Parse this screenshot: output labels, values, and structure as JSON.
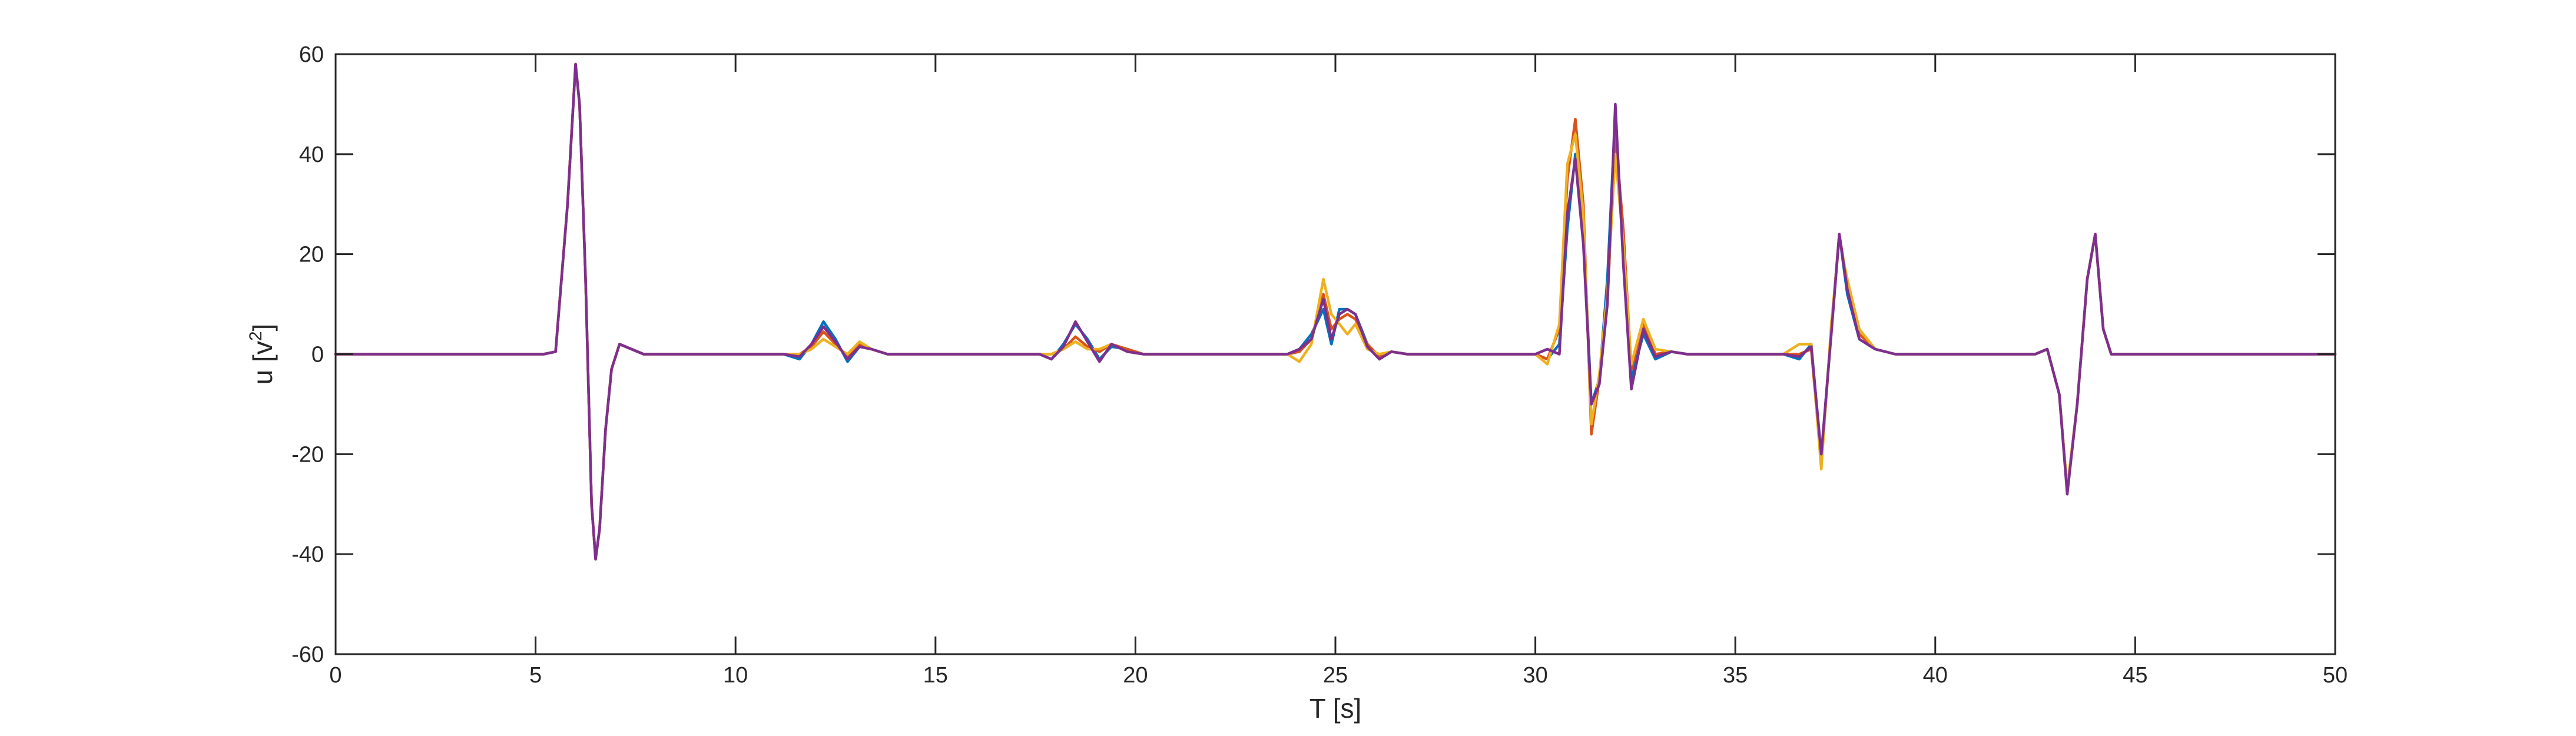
{
  "chart_data": {
    "type": "line",
    "title": "",
    "xlabel": "T [s]",
    "ylabel": "u [v",
    "ylabel_sup": "2",
    "ylabel_end": "]",
    "xlim": [
      0,
      50
    ],
    "ylim": [
      -60,
      60
    ],
    "xticks": [
      0,
      5,
      10,
      15,
      20,
      25,
      30,
      35,
      40,
      45,
      50
    ],
    "yticks": [
      -60,
      -40,
      -20,
      0,
      20,
      40,
      60
    ],
    "grid": false,
    "legend": "none",
    "colors": {
      "blue": "#0072BD",
      "orange": "#D95319",
      "yellow": "#EDB120",
      "purple": "#7E2F8E",
      "axis": "#262626"
    },
    "series": [
      {
        "color": "#0072BD",
        "x": [
          0,
          5.2,
          5.5,
          5.8,
          6.0,
          6.1,
          6.25,
          6.4,
          6.5,
          6.6,
          6.75,
          6.9,
          7.1,
          7.4,
          7.7,
          8.0,
          11.2,
          11.6,
          11.9,
          12.2,
          12.5,
          12.8,
          13.1,
          13.4,
          13.8,
          17.6,
          17.9,
          18.2,
          18.5,
          18.8,
          19.1,
          19.4,
          19.8,
          20.2,
          23.8,
          24.1,
          24.4,
          24.7,
          24.9,
          25.1,
          25.3,
          25.5,
          25.8,
          26.1,
          26.4,
          26.8,
          30.0,
          30.3,
          30.6,
          30.8,
          31.0,
          31.2,
          31.4,
          31.6,
          31.8,
          32.0,
          32.2,
          32.4,
          32.7,
          33.0,
          33.4,
          33.8,
          36.2,
          36.6,
          36.9,
          37.15,
          37.4,
          37.6,
          37.8,
          38.1,
          38.5,
          39.0,
          39.5,
          42.5,
          42.8,
          43.1,
          43.3,
          43.55,
          43.8,
          44.0,
          44.2,
          44.4,
          50
        ],
        "y": [
          0,
          0,
          0.5,
          30,
          58,
          50,
          15,
          -30,
          -41,
          -35,
          -15,
          -3,
          2,
          1,
          0,
          0,
          0,
          -1,
          2,
          6.5,
          3,
          -1.5,
          1.5,
          1,
          0,
          0,
          -1,
          2,
          6,
          3,
          -1,
          1.5,
          1,
          0,
          0,
          1,
          4,
          9,
          2,
          9,
          9,
          8,
          2,
          -1,
          0.5,
          0,
          0,
          -1,
          2,
          25,
          40,
          25,
          -10,
          -5,
          15,
          48,
          20,
          -5,
          4,
          -1,
          0.5,
          0,
          0,
          -1,
          2,
          -21,
          5,
          24,
          12,
          3,
          1,
          0,
          0,
          0,
          1,
          -8,
          -27,
          -10,
          15,
          24,
          5,
          0,
          0
        ]
      },
      {
        "color": "#D95319",
        "x": [
          0,
          5.2,
          5.5,
          5.8,
          6.0,
          6.1,
          6.25,
          6.4,
          6.5,
          6.6,
          6.75,
          6.9,
          7.1,
          7.4,
          7.7,
          8.0,
          11.2,
          11.6,
          11.9,
          12.2,
          12.5,
          12.8,
          13.1,
          13.4,
          13.8,
          17.6,
          17.9,
          18.2,
          18.5,
          18.8,
          19.1,
          19.4,
          19.8,
          20.2,
          23.8,
          24.1,
          24.4,
          24.7,
          24.9,
          25.1,
          25.3,
          25.5,
          25.8,
          26.1,
          26.4,
          26.8,
          30.0,
          30.3,
          30.6,
          30.8,
          31.0,
          31.2,
          31.4,
          31.6,
          31.8,
          32.0,
          32.2,
          32.4,
          32.7,
          33.0,
          33.4,
          33.8,
          36.2,
          36.6,
          36.9,
          37.15,
          37.4,
          37.6,
          37.8,
          38.1,
          38.5,
          39.0,
          39.5,
          42.5,
          42.8,
          43.1,
          43.3,
          43.55,
          43.8,
          44.0,
          44.2,
          44.4,
          50
        ],
        "y": [
          0,
          0,
          0.5,
          30,
          58,
          50,
          15,
          -30,
          -41,
          -35,
          -15,
          -3,
          2,
          1,
          0,
          0,
          0,
          0,
          1.5,
          4.5,
          2,
          -0.5,
          2,
          1,
          0,
          0,
          0,
          1,
          3.5,
          1.5,
          0.5,
          2,
          1,
          0,
          0,
          0.5,
          3,
          12,
          5,
          7,
          8,
          7,
          2,
          -0.5,
          0.5,
          0,
          0,
          -1,
          5,
          35,
          47,
          30,
          -16,
          -5,
          10,
          44,
          25,
          -3,
          6,
          0,
          0.5,
          0,
          0,
          0,
          1,
          -22,
          5,
          24,
          14,
          4,
          1,
          0,
          0,
          0,
          1,
          -8,
          -27,
          -10,
          15,
          24,
          5,
          0,
          0
        ]
      },
      {
        "color": "#EDB120",
        "x": [
          0,
          5.2,
          5.5,
          5.8,
          6.0,
          6.1,
          6.25,
          6.4,
          6.5,
          6.6,
          6.75,
          6.9,
          7.1,
          7.4,
          7.7,
          8.0,
          11.2,
          11.6,
          11.9,
          12.2,
          12.5,
          12.8,
          13.1,
          13.4,
          13.8,
          17.6,
          17.9,
          18.2,
          18.5,
          18.8,
          19.1,
          19.4,
          19.8,
          20.2,
          23.8,
          24.1,
          24.4,
          24.7,
          24.9,
          25.1,
          25.3,
          25.5,
          25.8,
          26.1,
          26.4,
          26.8,
          30.0,
          30.3,
          30.6,
          30.8,
          31.0,
          31.2,
          31.4,
          31.6,
          31.8,
          32.0,
          32.2,
          32.4,
          32.7,
          33.0,
          33.4,
          33.8,
          36.2,
          36.6,
          36.9,
          37.15,
          37.4,
          37.6,
          37.8,
          38.1,
          38.5,
          39.0,
          39.5,
          42.5,
          42.8,
          43.1,
          43.3,
          43.55,
          43.8,
          44.0,
          44.2,
          44.4,
          50
        ],
        "y": [
          0,
          0,
          0.5,
          30,
          58,
          50,
          15,
          -30,
          -41,
          -35,
          -15,
          -3,
          2,
          1,
          0,
          0,
          0,
          0,
          1,
          3,
          1.5,
          0,
          2.5,
          1,
          0,
          0,
          0,
          1,
          2.5,
          1,
          1,
          2,
          0.5,
          0,
          0,
          -1.5,
          2,
          15,
          8,
          6,
          4,
          6,
          1,
          0,
          0.5,
          0,
          0,
          -2,
          6,
          38,
          44,
          28,
          -14,
          -4,
          12,
          40,
          22,
          -2,
          7,
          1,
          0.5,
          0,
          0,
          2,
          2,
          -23,
          6,
          23,
          15,
          5,
          1,
          0,
          0,
          0,
          1,
          -8,
          -27,
          -10,
          15,
          24,
          5,
          0,
          0
        ]
      },
      {
        "color": "#7E2F8E",
        "x": [
          0,
          5.2,
          5.5,
          5.8,
          6.0,
          6.1,
          6.25,
          6.4,
          6.5,
          6.6,
          6.75,
          6.9,
          7.1,
          7.4,
          7.7,
          8.0,
          11.2,
          11.6,
          11.9,
          12.2,
          12.5,
          12.8,
          13.1,
          13.4,
          13.8,
          17.6,
          17.9,
          18.2,
          18.5,
          18.8,
          19.1,
          19.4,
          19.8,
          20.2,
          23.8,
          24.1,
          24.4,
          24.7,
          24.9,
          25.1,
          25.3,
          25.5,
          25.8,
          26.1,
          26.4,
          26.8,
          30.0,
          30.3,
          30.6,
          30.8,
          31.0,
          31.2,
          31.4,
          31.6,
          31.8,
          32.0,
          32.2,
          32.4,
          32.7,
          33.0,
          33.4,
          33.8,
          36.2,
          36.6,
          36.9,
          37.15,
          37.4,
          37.6,
          37.8,
          38.1,
          38.5,
          39.0,
          39.5,
          42.5,
          42.8,
          43.1,
          43.3,
          43.55,
          43.8,
          44.0,
          44.2,
          44.4,
          50
        ],
        "y": [
          0,
          0,
          0.5,
          30,
          58,
          50,
          15,
          -30,
          -41,
          -35,
          -15,
          -3,
          2,
          1,
          0,
          0,
          0,
          -0.5,
          2,
          5.5,
          2.5,
          -1,
          1.5,
          1,
          0,
          0,
          -1,
          1.5,
          6.5,
          2.5,
          -1.5,
          2,
          0.5,
          0,
          0,
          1,
          3,
          11,
          3,
          8,
          9,
          8,
          1.5,
          -1,
          0.5,
          0,
          0,
          1,
          0,
          28,
          39,
          22,
          -10,
          -6,
          10,
          50,
          18,
          -7,
          5,
          -0.5,
          0.5,
          0,
          0,
          -0.5,
          1.5,
          -20,
          4,
          24,
          13,
          3,
          1,
          0,
          0,
          0,
          1,
          -8,
          -28,
          -10,
          15,
          24,
          5,
          0,
          0
        ]
      }
    ]
  }
}
